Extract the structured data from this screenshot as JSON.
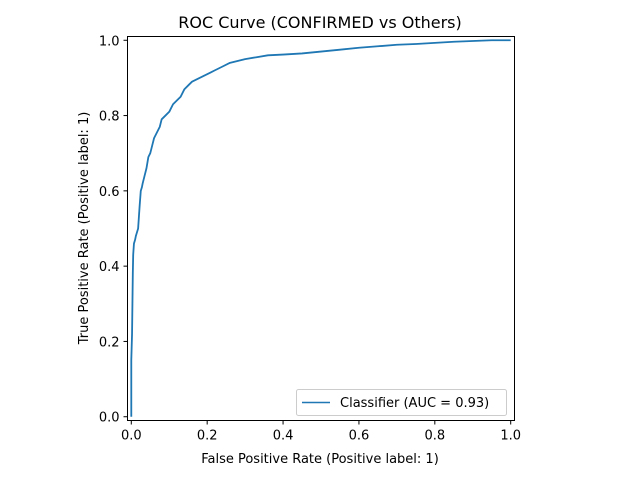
{
  "chart_data": {
    "type": "line",
    "title": "ROC Curve (CONFIRMED vs Others)",
    "xlabel": "False Positive Rate (Positive label: 1)",
    "ylabel": "True Positive Rate (Positive label: 1)",
    "xlim": [
      -0.01,
      1.01
    ],
    "ylim": [
      -0.01,
      1.01
    ],
    "xticks": [
      0.0,
      0.2,
      0.4,
      0.6,
      0.8,
      1.0
    ],
    "xtick_labels": [
      "0.0",
      "0.2",
      "0.4",
      "0.6",
      "0.8",
      "1.0"
    ],
    "yticks": [
      0.0,
      0.2,
      0.4,
      0.6,
      0.8,
      1.0
    ],
    "ytick_labels": [
      "0.0",
      "0.2",
      "0.4",
      "0.6",
      "0.8",
      "1.0"
    ],
    "grid": false,
    "legend_position": "lower-right",
    "series": [
      {
        "name": "Classifier (AUC = 0.93)",
        "color": "#1f77b4",
        "x": [
          0.0,
          0.0,
          0.002,
          0.003,
          0.004,
          0.005,
          0.007,
          0.01,
          0.012,
          0.015,
          0.018,
          0.02,
          0.022,
          0.025,
          0.028,
          0.03,
          0.035,
          0.04,
          0.045,
          0.05,
          0.055,
          0.06,
          0.065,
          0.07,
          0.075,
          0.08,
          0.09,
          0.1,
          0.11,
          0.12,
          0.13,
          0.14,
          0.15,
          0.16,
          0.17,
          0.18,
          0.19,
          0.2,
          0.21,
          0.22,
          0.24,
          0.26,
          0.28,
          0.3,
          0.33,
          0.36,
          0.4,
          0.45,
          0.48,
          0.5,
          0.55,
          0.6,
          0.65,
          0.7,
          0.75,
          0.8,
          0.85,
          0.9,
          0.95,
          1.0
        ],
        "y": [
          0.0,
          0.15,
          0.22,
          0.3,
          0.38,
          0.43,
          0.46,
          0.47,
          0.48,
          0.49,
          0.5,
          0.53,
          0.56,
          0.6,
          0.61,
          0.62,
          0.64,
          0.66,
          0.69,
          0.7,
          0.72,
          0.74,
          0.75,
          0.76,
          0.77,
          0.79,
          0.8,
          0.81,
          0.83,
          0.84,
          0.85,
          0.87,
          0.88,
          0.89,
          0.895,
          0.9,
          0.905,
          0.91,
          0.915,
          0.92,
          0.93,
          0.94,
          0.945,
          0.95,
          0.955,
          0.96,
          0.962,
          0.965,
          0.968,
          0.97,
          0.975,
          0.98,
          0.984,
          0.988,
          0.99,
          0.993,
          0.996,
          0.998,
          1.0,
          1.0
        ]
      }
    ]
  }
}
